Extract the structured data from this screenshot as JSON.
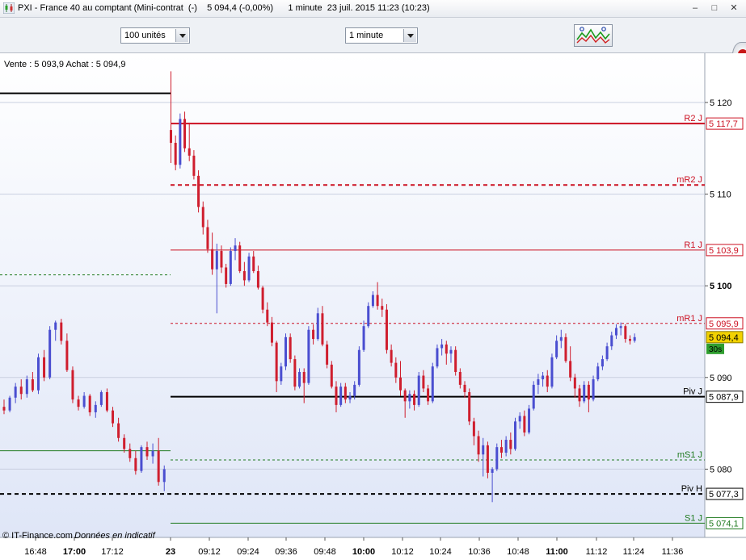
{
  "window": {
    "title": "PXI - France 40 au comptant (Mini-contrat  (-)    5 094,4 (-0,00%)      1 minute  23 juil. 2015 11:23 (10:23)",
    "icons": [
      "minimize-icon",
      "restore-icon",
      "close-icon"
    ]
  },
  "toolbar": {
    "units_value": "100 unités",
    "interval_value": "1 minute"
  },
  "chart_header": {
    "quote": "Vente : 5 093,9 Achat : 5 094,9"
  },
  "footer": {
    "credit": "© IT-Finance.com",
    "disclaimer": "Données en indicatif"
  },
  "colors": {
    "up": "#4a4ed0",
    "down": "#cf1e2e",
    "pivot": "#000000",
    "resistance": "#cc1122",
    "support": "#1f7a1f",
    "price_badge": "#f2d200"
  },
  "chart_data": {
    "type": "candlestick",
    "instrument": "PXI",
    "timeframe": "1 minute",
    "yticks": [
      {
        "value": 5120,
        "label": "5 120",
        "bold": false
      },
      {
        "value": 5110,
        "label": "5 110",
        "bold": false
      },
      {
        "value": 5100,
        "label": "5 100",
        "bold": true
      },
      {
        "value": 5090,
        "label": "5 090",
        "bold": false
      },
      {
        "value": 5080,
        "label": "5 080",
        "bold": false
      }
    ],
    "ylim": [
      5068.5,
      5129
    ],
    "xticks": [
      {
        "label": "16:48",
        "bold": false
      },
      {
        "label": "17:00",
        "bold": true
      },
      {
        "label": "17:12",
        "bold": false
      },
      {
        "label": "23",
        "bold": true
      },
      {
        "label": "09:12",
        "bold": false
      },
      {
        "label": "09:24",
        "bold": false
      },
      {
        "label": "09:36",
        "bold": false
      },
      {
        "label": "09:48",
        "bold": false
      },
      {
        "label": "10:00",
        "bold": true
      },
      {
        "label": "10:12",
        "bold": false
      },
      {
        "label": "10:24",
        "bold": false
      },
      {
        "label": "10:36",
        "bold": false
      },
      {
        "label": "10:48",
        "bold": false
      },
      {
        "label": "11:00",
        "bold": true
      },
      {
        "label": "11:12",
        "bold": false
      },
      {
        "label": "11:24",
        "bold": false
      },
      {
        "label": "11:36",
        "bold": false
      }
    ],
    "levels": [
      {
        "name": "R2 J",
        "value": 5117.7,
        "label": "5 117,7",
        "style": "solid",
        "color": "resistance",
        "from": "today"
      },
      {
        "name": "mR2 J",
        "value": 5111.0,
        "label": "",
        "style": "dashed",
        "color": "resistance",
        "from": "today"
      },
      {
        "name": "R1 J",
        "value": 5103.9,
        "label": "5 103,9",
        "style": "solid",
        "color": "resistance",
        "from": "today"
      },
      {
        "name": "mR1 J",
        "value": 5095.9,
        "label": "5 095,9",
        "style": "dashed",
        "color": "resistance",
        "from": "today"
      },
      {
        "name": "Piv J",
        "value": 5087.9,
        "label": "5 087,9",
        "style": "solid",
        "color": "pivot",
        "from": "today"
      },
      {
        "name": "mS1 J",
        "value": 5081.0,
        "label": "",
        "style": "dashed",
        "color": "support",
        "from": "today"
      },
      {
        "name": "Piv H",
        "value": 5077.3,
        "label": "5 077,3",
        "style": "dashed",
        "color": "pivot",
        "from": "start"
      },
      {
        "name": "S1 J",
        "value": 5074.1,
        "label": "5 074,1",
        "style": "solid",
        "color": "support",
        "from": "today"
      }
    ],
    "previous_day_levels": [
      {
        "value": 5121.0,
        "style": "solid",
        "color": "pivot"
      },
      {
        "value": 5101.2,
        "style": "dashed",
        "color": "support"
      },
      {
        "value": 5082.0,
        "style": "solid",
        "color": "support"
      }
    ],
    "last_price": {
      "value": 5094.4,
      "label": "5 094,4",
      "countdown": "30s"
    },
    "candles_prev_session": [
      [
        5086.8,
        5087.6,
        5086.0,
        5086.4
      ],
      [
        5086.4,
        5088.0,
        5086.2,
        5087.8
      ],
      [
        5087.8,
        5089.4,
        5087.2,
        5089.0
      ],
      [
        5089.0,
        5089.8,
        5087.6,
        5088.2
      ],
      [
        5088.2,
        5090.2,
        5087.8,
        5089.8
      ],
      [
        5089.8,
        5090.6,
        5088.4,
        5088.6
      ],
      [
        5088.6,
        5092.6,
        5088.2,
        5092.2
      ],
      [
        5092.2,
        5093.0,
        5089.6,
        5090.0
      ],
      [
        5090.0,
        5095.6,
        5089.8,
        5095.2
      ],
      [
        5095.2,
        5096.2,
        5094.0,
        5096.0
      ],
      [
        5096.0,
        5096.4,
        5093.6,
        5094.0
      ],
      [
        5094.0,
        5094.8,
        5090.6,
        5090.8
      ],
      [
        5090.8,
        5091.2,
        5087.2,
        5087.6
      ],
      [
        5087.6,
        5088.0,
        5086.4,
        5086.8
      ],
      [
        5086.8,
        5088.4,
        5086.6,
        5088.0
      ],
      [
        5088.0,
        5088.2,
        5085.8,
        5086.2
      ],
      [
        5086.2,
        5087.4,
        5085.6,
        5087.0
      ],
      [
        5087.0,
        5088.6,
        5086.8,
        5088.4
      ],
      [
        5088.4,
        5088.8,
        5086.2,
        5086.4
      ],
      [
        5086.4,
        5086.8,
        5084.6,
        5085.0
      ],
      [
        5085.0,
        5085.6,
        5083.0,
        5083.4
      ],
      [
        5083.4,
        5083.8,
        5081.8,
        5082.2
      ],
      [
        5082.2,
        5082.8,
        5080.8,
        5081.2
      ],
      [
        5081.2,
        5082.0,
        5079.4,
        5079.8
      ],
      [
        5079.8,
        5082.6,
        5079.6,
        5082.4
      ],
      [
        5082.4,
        5083.0,
        5081.0,
        5081.4
      ],
      [
        5081.4,
        5082.8,
        5080.6,
        5082.0
      ],
      [
        5082.0,
        5083.4,
        5078.2,
        5078.6
      ],
      [
        5078.6,
        5080.4,
        5077.6,
        5080.0
      ]
    ],
    "candles_today": [
      [
        5117.0,
        5123.4,
        5113.4,
        5115.6
      ],
      [
        5115.6,
        5116.4,
        5112.6,
        5113.2
      ],
      [
        5113.2,
        5118.8,
        5112.8,
        5118.2
      ],
      [
        5118.2,
        5119.0,
        5114.6,
        5115.0
      ],
      [
        5115.0,
        5117.8,
        5113.6,
        5114.2
      ],
      [
        5114.2,
        5114.8,
        5111.6,
        5112.0
      ],
      [
        5112.0,
        5112.6,
        5108.0,
        5108.6
      ],
      [
        5108.6,
        5109.2,
        5105.6,
        5106.4
      ],
      [
        5106.4,
        5107.2,
        5103.6,
        5104.0
      ],
      [
        5104.0,
        5105.8,
        5101.2,
        5101.8
      ],
      [
        5101.8,
        5104.6,
        5097.0,
        5103.8
      ],
      [
        5103.8,
        5104.4,
        5101.4,
        5102.0
      ],
      [
        5102.0,
        5102.4,
        5099.8,
        5100.2
      ],
      [
        5100.2,
        5104.2,
        5100.0,
        5103.8
      ],
      [
        5103.8,
        5105.2,
        5102.8,
        5104.4
      ],
      [
        5104.4,
        5104.8,
        5101.4,
        5101.6
      ],
      [
        5101.6,
        5102.6,
        5100.0,
        5100.6
      ],
      [
        5100.6,
        5103.6,
        5100.4,
        5103.2
      ],
      [
        5103.2,
        5103.8,
        5101.4,
        5101.6
      ],
      [
        5101.6,
        5102.2,
        5099.6,
        5099.8
      ],
      [
        5099.8,
        5100.0,
        5097.0,
        5097.4
      ],
      [
        5097.4,
        5098.2,
        5095.6,
        5096.0
      ],
      [
        5096.0,
        5096.6,
        5093.4,
        5093.8
      ],
      [
        5093.8,
        5094.0,
        5088.4,
        5089.6
      ],
      [
        5089.6,
        5091.6,
        5089.2,
        5091.2
      ],
      [
        5091.2,
        5094.8,
        5090.8,
        5094.4
      ],
      [
        5094.4,
        5094.8,
        5091.6,
        5092.0
      ],
      [
        5092.0,
        5092.4,
        5088.6,
        5089.0
      ],
      [
        5089.0,
        5091.0,
        5088.8,
        5090.6
      ],
      [
        5090.6,
        5091.0,
        5087.2,
        5089.4
      ],
      [
        5089.4,
        5095.6,
        5089.2,
        5095.2
      ],
      [
        5095.2,
        5095.8,
        5093.6,
        5094.2
      ],
      [
        5094.2,
        5097.6,
        5094.0,
        5097.0
      ],
      [
        5097.0,
        5097.8,
        5093.4,
        5093.6
      ],
      [
        5093.6,
        5094.0,
        5091.0,
        5091.4
      ],
      [
        5091.4,
        5091.8,
        5088.8,
        5089.0
      ],
      [
        5089.0,
        5089.6,
        5086.2,
        5087.0
      ],
      [
        5087.0,
        5089.4,
        5086.8,
        5089.0
      ],
      [
        5089.0,
        5089.4,
        5087.2,
        5087.6
      ],
      [
        5087.6,
        5088.4,
        5087.2,
        5088.0
      ],
      [
        5088.0,
        5089.6,
        5087.6,
        5089.2
      ],
      [
        5089.2,
        5093.4,
        5089.0,
        5093.0
      ],
      [
        5093.0,
        5096.2,
        5092.8,
        5095.6
      ],
      [
        5095.6,
        5098.2,
        5095.4,
        5097.8
      ],
      [
        5097.8,
        5099.4,
        5097.6,
        5099.0
      ],
      [
        5099.0,
        5100.4,
        5097.4,
        5097.8
      ],
      [
        5097.8,
        5098.6,
        5096.6,
        5097.4
      ],
      [
        5097.4,
        5098.0,
        5092.6,
        5093.0
      ],
      [
        5093.0,
        5093.6,
        5091.2,
        5091.6
      ],
      [
        5091.6,
        5092.2,
        5089.4,
        5090.0
      ],
      [
        5090.0,
        5091.8,
        5088.0,
        5088.6
      ],
      [
        5088.6,
        5088.8,
        5085.6,
        5087.4
      ],
      [
        5087.4,
        5088.6,
        5086.6,
        5088.2
      ],
      [
        5088.2,
        5088.6,
        5086.4,
        5087.0
      ],
      [
        5087.0,
        5090.6,
        5086.8,
        5090.2
      ],
      [
        5090.2,
        5090.8,
        5088.4,
        5088.8
      ],
      [
        5088.8,
        5089.2,
        5087.0,
        5087.4
      ],
      [
        5087.4,
        5091.6,
        5087.2,
        5091.2
      ],
      [
        5091.2,
        5093.6,
        5091.0,
        5093.2
      ],
      [
        5093.2,
        5094.2,
        5092.4,
        5093.6
      ],
      [
        5093.6,
        5094.0,
        5091.4,
        5092.6
      ],
      [
        5092.6,
        5093.4,
        5091.6,
        5093.0
      ],
      [
        5093.0,
        5093.4,
        5090.2,
        5090.6
      ],
      [
        5090.6,
        5091.0,
        5088.8,
        5089.2
      ],
      [
        5089.2,
        5089.6,
        5087.8,
        5088.4
      ],
      [
        5088.4,
        5088.8,
        5084.8,
        5085.2
      ],
      [
        5085.2,
        5085.6,
        5082.6,
        5083.6
      ],
      [
        5083.6,
        5084.2,
        5080.8,
        5081.6
      ],
      [
        5081.6,
        5083.4,
        5079.2,
        5082.6
      ],
      [
        5082.6,
        5083.0,
        5079.0,
        5079.6
      ],
      [
        5079.6,
        5080.2,
        5076.4,
        5080.0
      ],
      [
        5080.0,
        5082.8,
        5079.8,
        5082.4
      ],
      [
        5082.4,
        5083.2,
        5081.2,
        5081.8
      ],
      [
        5081.8,
        5083.6,
        5081.4,
        5083.2
      ],
      [
        5083.2,
        5084.0,
        5081.6,
        5082.2
      ],
      [
        5082.2,
        5085.6,
        5082.0,
        5085.2
      ],
      [
        5085.2,
        5086.2,
        5084.4,
        5085.8
      ],
      [
        5085.8,
        5086.4,
        5083.6,
        5084.0
      ],
      [
        5084.0,
        5087.0,
        5083.8,
        5086.6
      ],
      [
        5086.6,
        5089.6,
        5086.4,
        5089.2
      ],
      [
        5089.2,
        5090.4,
        5088.2,
        5089.8
      ],
      [
        5089.8,
        5090.6,
        5089.0,
        5090.2
      ],
      [
        5090.2,
        5090.8,
        5088.4,
        5089.0
      ],
      [
        5089.0,
        5092.6,
        5088.8,
        5092.2
      ],
      [
        5092.2,
        5094.6,
        5092.0,
        5094.0
      ],
      [
        5094.0,
        5095.2,
        5093.2,
        5094.4
      ],
      [
        5094.4,
        5094.8,
        5091.6,
        5091.8
      ],
      [
        5091.8,
        5093.4,
        5089.6,
        5090.0
      ],
      [
        5090.0,
        5090.4,
        5087.8,
        5088.8
      ],
      [
        5088.8,
        5089.2,
        5086.8,
        5087.4
      ],
      [
        5087.4,
        5089.6,
        5087.2,
        5089.2
      ],
      [
        5089.2,
        5089.6,
        5086.2,
        5087.6
      ],
      [
        5087.6,
        5090.2,
        5087.4,
        5089.8
      ],
      [
        5089.8,
        5091.6,
        5089.6,
        5091.2
      ],
      [
        5091.2,
        5092.4,
        5090.8,
        5092.0
      ],
      [
        5092.0,
        5093.8,
        5091.8,
        5093.4
      ],
      [
        5093.4,
        5095.0,
        5093.0,
        5094.6
      ],
      [
        5094.6,
        5095.8,
        5094.2,
        5095.4
      ],
      [
        5095.4,
        5096.0,
        5094.6,
        5095.6
      ],
      [
        5095.6,
        5095.8,
        5093.8,
        5094.2
      ],
      [
        5094.2,
        5094.6,
        5093.6,
        5094.0
      ],
      [
        5094.0,
        5094.8,
        5093.8,
        5094.4
      ]
    ]
  }
}
